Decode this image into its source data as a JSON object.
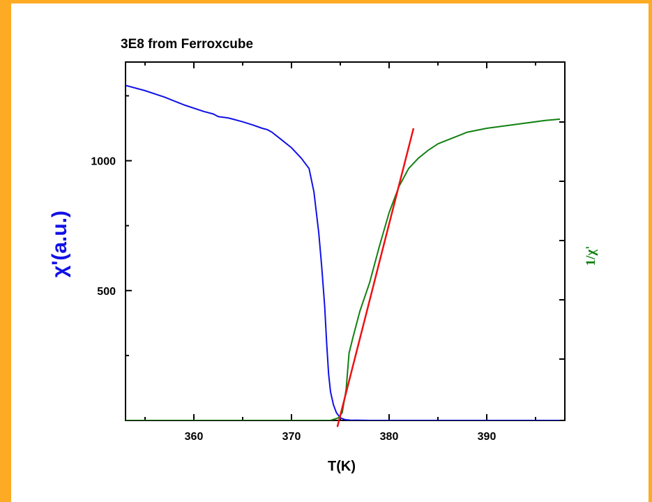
{
  "chart_data": {
    "type": "line",
    "title": "3E8  from Ferroxcube",
    "xlabel": "T(K)",
    "ylabel_left": "χ'(a.u.)",
    "ylabel_right": "1/χ'",
    "xlim": [
      353,
      398
    ],
    "ylim_left": [
      0,
      1380
    ],
    "x_ticks": [
      360,
      370,
      380,
      390
    ],
    "y_ticks_left": [
      500,
      1000
    ],
    "grid": false,
    "legend": "none",
    "colors": {
      "chi": "#1010e8",
      "inv_chi": "#118011",
      "fit": "#ee1111",
      "background": "#fdab24"
    },
    "series": [
      {
        "key": "chi",
        "axis": "left",
        "x": [
          353,
          355,
          357,
          359,
          361,
          362,
          362.5,
          363.5,
          364,
          365,
          366,
          367,
          367.5,
          368,
          369,
          370,
          371,
          371.8,
          372.3,
          372.8,
          373.1,
          373.4,
          373.6,
          373.8,
          374.0,
          374.3,
          374.6,
          375.0,
          375.5,
          376,
          378,
          385,
          397.5
        ],
        "y": [
          1290,
          1270,
          1245,
          1215,
          1190,
          1180,
          1170,
          1165,
          1160,
          1150,
          1138,
          1125,
          1120,
          1110,
          1080,
          1050,
          1010,
          970,
          880,
          720,
          590,
          440,
          300,
          180,
          110,
          60,
          30,
          10,
          3,
          1,
          0,
          0,
          0
        ]
      },
      {
        "key": "inv_chi",
        "axis": "right",
        "x": [
          353,
          370,
          374,
          374.8,
          375.2,
          375.6,
          375.9,
          376.3,
          377,
          378,
          379,
          380,
          381,
          382,
          383,
          384,
          385,
          386,
          387,
          388,
          390,
          392,
          394,
          396,
          397.5
        ],
        "y": [
          0,
          0,
          0,
          10,
          30,
          120,
          260,
          320,
          420,
          530,
          670,
          800,
          900,
          970,
          1010,
          1040,
          1065,
          1080,
          1095,
          1110,
          1125,
          1135,
          1145,
          1155,
          1160
        ]
      },
      {
        "key": "fit",
        "axis": "right",
        "x": [
          374.7,
          382.5
        ],
        "y": [
          -25,
          1125
        ]
      }
    ]
  }
}
